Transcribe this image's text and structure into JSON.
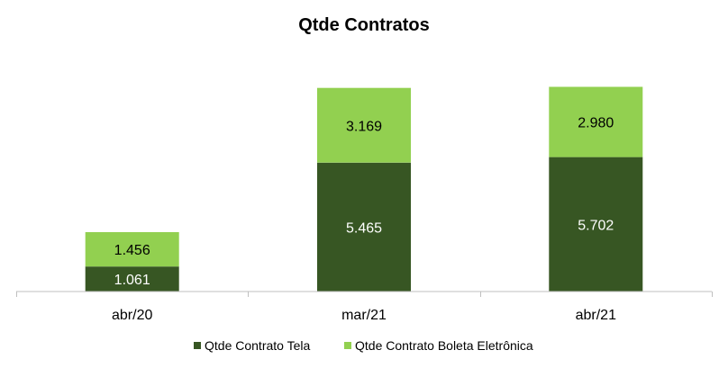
{
  "chart_data": {
    "type": "bar",
    "stacked": true,
    "title": "Qtde Contratos",
    "categories": [
      "abr/20",
      "mar/21",
      "abr/21"
    ],
    "series": [
      {
        "name": "Qtde Contrato Tela",
        "values": [
          1061,
          5465,
          5702
        ],
        "labels": [
          "1.061",
          "5.465",
          "5.702"
        ],
        "color": "#375623",
        "label_color": "#ffffff"
      },
      {
        "name": "Qtde Contrato Boleta Eletrônica",
        "values": [
          1456,
          3169,
          2980
        ],
        "labels": [
          "1.456",
          "3.169",
          "2.980"
        ],
        "color": "#92d050",
        "label_color": "#000000"
      }
    ],
    "ylim": [
      0,
      8700
    ],
    "grid": false,
    "legend_position": "bottom"
  }
}
